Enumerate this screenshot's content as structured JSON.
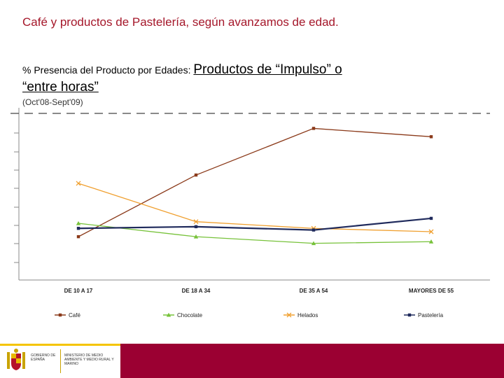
{
  "title": "Café y productos de Pastelería, según avanzamos de edad.",
  "subtitle": {
    "part1": "% Presencia del Producto por Edades: ",
    "part2": "Productos de “Impulso” o",
    "part3": "“entre horas”"
  },
  "period": "(Oct'08-Sept'09)",
  "chart_data": {
    "type": "line",
    "categories": [
      "DE 10 A 17",
      "DE 18 A 34",
      "DE 35 A 54",
      "MAYORES DE 55"
    ],
    "series": [
      {
        "name": "Café",
        "color": "#8b3a1a",
        "marker": "square",
        "values": [
          26,
          63,
          91,
          86
        ]
      },
      {
        "name": "Chocolate",
        "color": "#77c23a",
        "marker": "triangle",
        "values": [
          34,
          26,
          22,
          23
        ]
      },
      {
        "name": "Helados",
        "color": "#f0a030",
        "marker": "x",
        "values": [
          58,
          35,
          31,
          29
        ]
      },
      {
        "name": "Pastelería",
        "color": "#1f2a5c",
        "marker": "square",
        "values": [
          31,
          32,
          30,
          37
        ]
      }
    ],
    "ylim": [
      0,
      100
    ],
    "reference_line": 100,
    "xlabel": "",
    "ylabel": "",
    "legend_position": "bottom"
  },
  "footer": {
    "gov_text": "GOBIERNO DE ESPAÑA",
    "ministry_text": "MINISTERIO DE MEDIO AMBIENTE Y MEDIO RURAL Y MARINO"
  }
}
